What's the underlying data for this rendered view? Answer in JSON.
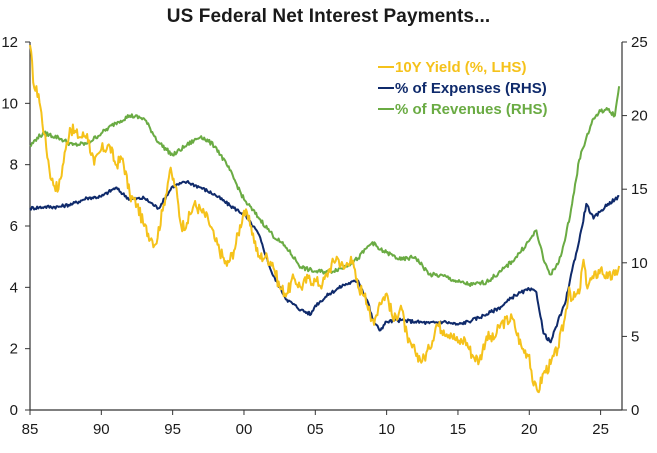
{
  "chart_data": {
    "type": "line",
    "title": "US Federal Net Interest Payments...",
    "xlabel": "",
    "ylabel_left": "",
    "ylabel_right": "",
    "x_ticks": [
      "85",
      "90",
      "95",
      "00",
      "05",
      "10",
      "15",
      "20",
      "25"
    ],
    "x_tick_values": [
      1985,
      1990,
      1995,
      2000,
      2005,
      2010,
      2015,
      2020,
      2025
    ],
    "xlim": [
      1985,
      2026.5
    ],
    "y_left": {
      "lim": [
        0,
        12
      ],
      "ticks": [
        0,
        2,
        4,
        6,
        8,
        10,
        12
      ]
    },
    "y_right": {
      "lim": [
        0,
        25
      ],
      "ticks": [
        0,
        5,
        10,
        15,
        20,
        25
      ]
    },
    "grid": false,
    "legend_position": "top-right",
    "series": [
      {
        "name": "10Y Yield (%, LHS)",
        "axis": "left",
        "color": "#f5c21b",
        "x": [
          1985,
          1985.3,
          1985.6,
          1986,
          1986.5,
          1987,
          1987.5,
          1987.8,
          1988.5,
          1989,
          1989.5,
          1990,
          1990.6,
          1991,
          1991.5,
          1992,
          1992.5,
          1993,
          1993.5,
          1993.8,
          1994.3,
          1994.8,
          1995.2,
          1995.6,
          1996,
          1996.5,
          1997,
          1997.5,
          1998,
          1998.8,
          1999.3,
          2000,
          2000.5,
          2001,
          2001.5,
          2002,
          2002.5,
          2003,
          2003.5,
          2004,
          2004.5,
          2005,
          2005.5,
          2006,
          2006.5,
          2007,
          2007.5,
          2008,
          2008.5,
          2008.9,
          2009.2,
          2009.5,
          2010,
          2010.5,
          2011,
          2011.5,
          2012,
          2012.5,
          2013,
          2013.5,
          2014,
          2014.5,
          2015,
          2015.5,
          2016,
          2016.5,
          2017,
          2017.5,
          2018,
          2018.8,
          2019,
          2019.5,
          2020,
          2020.3,
          2020.6,
          2021,
          2021.5,
          2022,
          2022.5,
          2022.8,
          2023,
          2023.5,
          2023.8,
          2024,
          2024.5,
          2025,
          2025.5,
          2026,
          2026.3
        ],
        "y": [
          11.9,
          10.5,
          10.3,
          9.0,
          7.5,
          7.2,
          8.5,
          9.2,
          8.9,
          9.0,
          8.0,
          8.5,
          8.6,
          8.0,
          8.2,
          7.0,
          6.7,
          6.0,
          5.6,
          5.4,
          6.5,
          7.8,
          7.3,
          6.0,
          6.1,
          6.7,
          6.5,
          6.2,
          5.5,
          4.7,
          5.2,
          6.5,
          6.0,
          5.0,
          5.0,
          4.8,
          4.0,
          3.8,
          4.3,
          4.0,
          4.3,
          4.2,
          4.1,
          4.6,
          5.0,
          4.6,
          5.0,
          4.0,
          3.8,
          2.9,
          3.0,
          3.5,
          3.8,
          2.9,
          3.4,
          2.2,
          1.9,
          1.6,
          2.0,
          2.8,
          2.6,
          2.5,
          2.2,
          2.3,
          1.8,
          1.6,
          2.4,
          2.3,
          2.8,
          3.0,
          2.7,
          2.0,
          1.8,
          0.8,
          0.6,
          1.2,
          1.5,
          2.0,
          3.0,
          4.0,
          3.6,
          3.8,
          4.9,
          4.1,
          4.3,
          4.6,
          4.3,
          4.4,
          4.7
        ],
        "jitter": 0.2
      },
      {
        "name": "% of Expenses (RHS)",
        "axis": "right",
        "color": "#0f2a6b",
        "x": [
          1985,
          1986,
          1987,
          1988,
          1989,
          1990,
          1991,
          1992,
          1993,
          1994,
          1995,
          1996,
          1997,
          1998,
          1999,
          2000,
          2001,
          2002,
          2003,
          2004,
          2004.7,
          2005,
          2006,
          2007,
          2008,
          2008.7,
          2009,
          2009.5,
          2010,
          2011,
          2012,
          2013,
          2014,
          2015,
          2016,
          2017,
          2018,
          2019,
          2020,
          2020.5,
          2021,
          2021.5,
          2022,
          2022.5,
          2023,
          2023.5,
          2024,
          2024.5,
          2025,
          2025.5,
          2026,
          2026.3
        ],
        "y": [
          13.7,
          13.8,
          13.8,
          14.0,
          14.4,
          14.5,
          15.1,
          14.3,
          14.4,
          13.7,
          15.2,
          15.5,
          15.1,
          14.6,
          13.9,
          13.3,
          12.0,
          9.2,
          7.5,
          6.8,
          6.5,
          7.1,
          7.9,
          8.5,
          8.8,
          7.3,
          6.2,
          5.4,
          6.0,
          6.1,
          6.0,
          5.9,
          6.0,
          5.8,
          6.1,
          6.5,
          7.0,
          7.8,
          8.2,
          8.0,
          5.2,
          4.6,
          6.0,
          7.2,
          9.5,
          11.5,
          14.0,
          13.0,
          13.5,
          14.0,
          14.3,
          14.5
        ],
        "jitter": 0.12
      },
      {
        "name": "% of Revenues (RHS)",
        "axis": "right",
        "color": "#6aab43",
        "x": [
          1985,
          1985.5,
          1986,
          1987,
          1988,
          1989,
          1990,
          1991,
          1992,
          1993,
          1994,
          1995,
          1996,
          1997,
          1998,
          1999,
          2000,
          2001,
          2002,
          2003,
          2004,
          2005,
          2006,
          2007,
          2008,
          2008.6,
          2009,
          2009.5,
          2010,
          2011,
          2012,
          2013,
          2014,
          2015,
          2016,
          2017,
          2018,
          2019,
          2020,
          2020.5,
          2021,
          2021.5,
          2022,
          2022.5,
          2023,
          2023.5,
          2024,
          2024.5,
          2025,
          2025.5,
          2026,
          2026.3
        ],
        "y": [
          17.9,
          18.5,
          18.8,
          18.5,
          18.0,
          18.1,
          18.8,
          19.5,
          20.0,
          19.8,
          18.2,
          17.3,
          18.0,
          18.6,
          17.9,
          16.3,
          14.3,
          13.1,
          11.9,
          11.0,
          9.7,
          9.4,
          9.4,
          9.7,
          10.3,
          11.0,
          11.4,
          10.9,
          10.7,
          10.2,
          10.4,
          9.2,
          9.1,
          8.7,
          8.5,
          8.7,
          9.4,
          10.3,
          11.5,
          12.2,
          10.2,
          9.2,
          9.9,
          11.5,
          14.0,
          17.0,
          18.5,
          19.8,
          20.3,
          20.4,
          20.0,
          22.0
        ],
        "jitter": 0.15
      }
    ]
  }
}
